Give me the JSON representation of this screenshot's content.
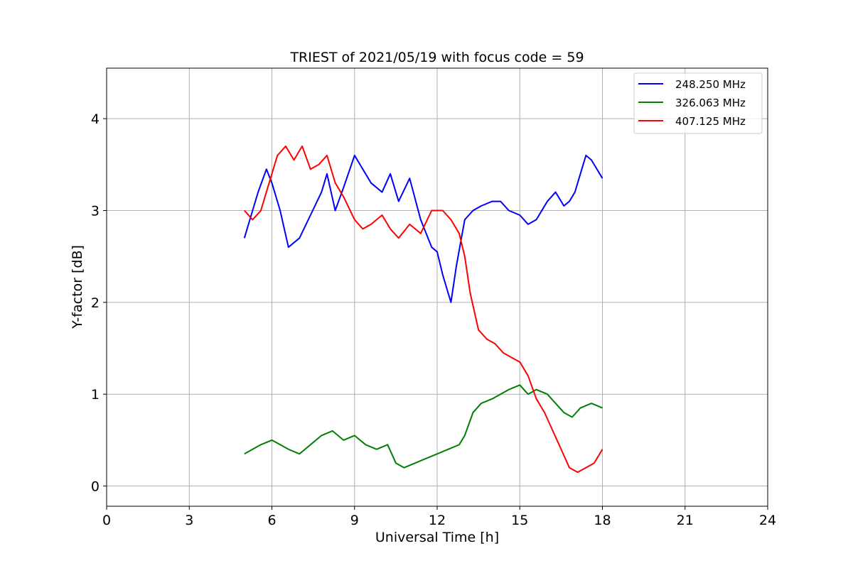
{
  "chart_data": {
    "type": "line",
    "title": "TRIEST of 2021/05/19 with focus code = 59",
    "xlabel": "Universal Time [h]",
    "ylabel": "Y-factor [dB]",
    "xlim": [
      0,
      24
    ],
    "ylim": [
      -0.22,
      4.55
    ],
    "x_ticks": [
      0,
      3,
      6,
      9,
      12,
      15,
      18,
      21,
      24
    ],
    "y_ticks": [
      0,
      1,
      2,
      3,
      4
    ],
    "grid": true,
    "legend_position": "top-right",
    "series": [
      {
        "name": "248.250 MHz",
        "color": "#0000ff",
        "x": [
          5.0,
          5.2,
          5.5,
          5.8,
          6.0,
          6.3,
          6.6,
          7.0,
          7.4,
          7.8,
          8.0,
          8.3,
          8.6,
          9.0,
          9.3,
          9.6,
          10.0,
          10.3,
          10.6,
          11.0,
          11.4,
          11.8,
          12.0,
          12.2,
          12.4,
          12.5,
          12.7,
          13.0,
          13.3,
          13.6,
          14.0,
          14.3,
          14.6,
          15.0,
          15.3,
          15.6,
          16.0,
          16.3,
          16.6,
          16.8,
          17.0,
          17.2,
          17.4,
          17.6,
          17.8,
          18.0
        ],
        "y": [
          2.7,
          2.9,
          3.2,
          3.45,
          3.3,
          3.0,
          2.6,
          2.7,
          2.95,
          3.2,
          3.4,
          3.0,
          3.25,
          3.6,
          3.45,
          3.3,
          3.2,
          3.4,
          3.1,
          3.35,
          2.9,
          2.6,
          2.55,
          2.3,
          2.1,
          2.0,
          2.4,
          2.9,
          3.0,
          3.05,
          3.1,
          3.1,
          3.0,
          2.95,
          2.85,
          2.9,
          3.1,
          3.2,
          3.05,
          3.1,
          3.2,
          3.4,
          3.6,
          3.55,
          3.45,
          3.35
        ]
      },
      {
        "name": "326.063 MHz",
        "color": "#008000",
        "x": [
          5.0,
          5.3,
          5.6,
          6.0,
          6.3,
          6.6,
          7.0,
          7.4,
          7.8,
          8.2,
          8.6,
          9.0,
          9.4,
          9.8,
          10.2,
          10.5,
          10.8,
          11.2,
          11.6,
          12.0,
          12.4,
          12.8,
          13.0,
          13.3,
          13.6,
          14.0,
          14.3,
          14.6,
          15.0,
          15.3,
          15.6,
          16.0,
          16.3,
          16.6,
          16.9,
          17.2,
          17.6,
          18.0
        ],
        "y": [
          0.35,
          0.4,
          0.45,
          0.5,
          0.45,
          0.4,
          0.35,
          0.45,
          0.55,
          0.6,
          0.5,
          0.55,
          0.45,
          0.4,
          0.45,
          0.25,
          0.2,
          0.25,
          0.3,
          0.35,
          0.4,
          0.45,
          0.55,
          0.8,
          0.9,
          0.95,
          1.0,
          1.05,
          1.1,
          1.0,
          1.05,
          1.0,
          0.9,
          0.8,
          0.75,
          0.85,
          0.9,
          0.85
        ]
      },
      {
        "name": "407.125 MHz",
        "color": "#ff0000",
        "x": [
          5.0,
          5.3,
          5.6,
          5.9,
          6.2,
          6.5,
          6.8,
          7.1,
          7.4,
          7.7,
          8.0,
          8.3,
          8.6,
          9.0,
          9.3,
          9.6,
          10.0,
          10.3,
          10.6,
          11.0,
          11.4,
          11.8,
          12.2,
          12.5,
          12.8,
          13.0,
          13.2,
          13.5,
          13.8,
          14.1,
          14.4,
          14.7,
          15.0,
          15.3,
          15.6,
          15.9,
          16.2,
          16.5,
          16.8,
          17.1,
          17.4,
          17.7,
          18.0
        ],
        "y": [
          3.0,
          2.9,
          3.0,
          3.3,
          3.6,
          3.7,
          3.55,
          3.7,
          3.45,
          3.5,
          3.6,
          3.3,
          3.15,
          2.9,
          2.8,
          2.85,
          2.95,
          2.8,
          2.7,
          2.85,
          2.75,
          3.0,
          3.0,
          2.9,
          2.75,
          2.5,
          2.1,
          1.7,
          1.6,
          1.55,
          1.45,
          1.4,
          1.35,
          1.2,
          0.95,
          0.8,
          0.6,
          0.4,
          0.2,
          0.15,
          0.2,
          0.25,
          0.4
        ]
      }
    ]
  }
}
